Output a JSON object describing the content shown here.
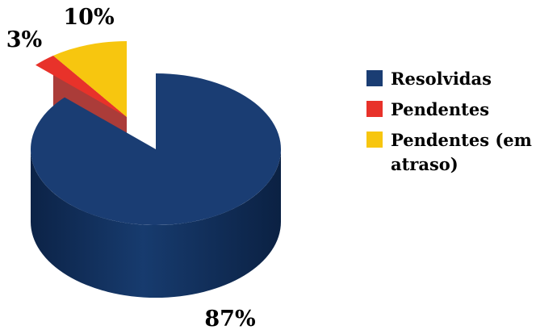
{
  "chart_data": {
    "type": "pie",
    "style": "3d-exploded",
    "series": [
      {
        "name": "Resolvidas",
        "value": 87,
        "label": "87%",
        "color": "#1a3d73"
      },
      {
        "name": "Pendentes",
        "value": 3,
        "label": "3%",
        "color": "#e8322a"
      },
      {
        "name": "Pendentes (em atraso)",
        "value": 10,
        "label": "10%",
        "color": "#f7c60f"
      }
    ],
    "legend_position": "right"
  }
}
